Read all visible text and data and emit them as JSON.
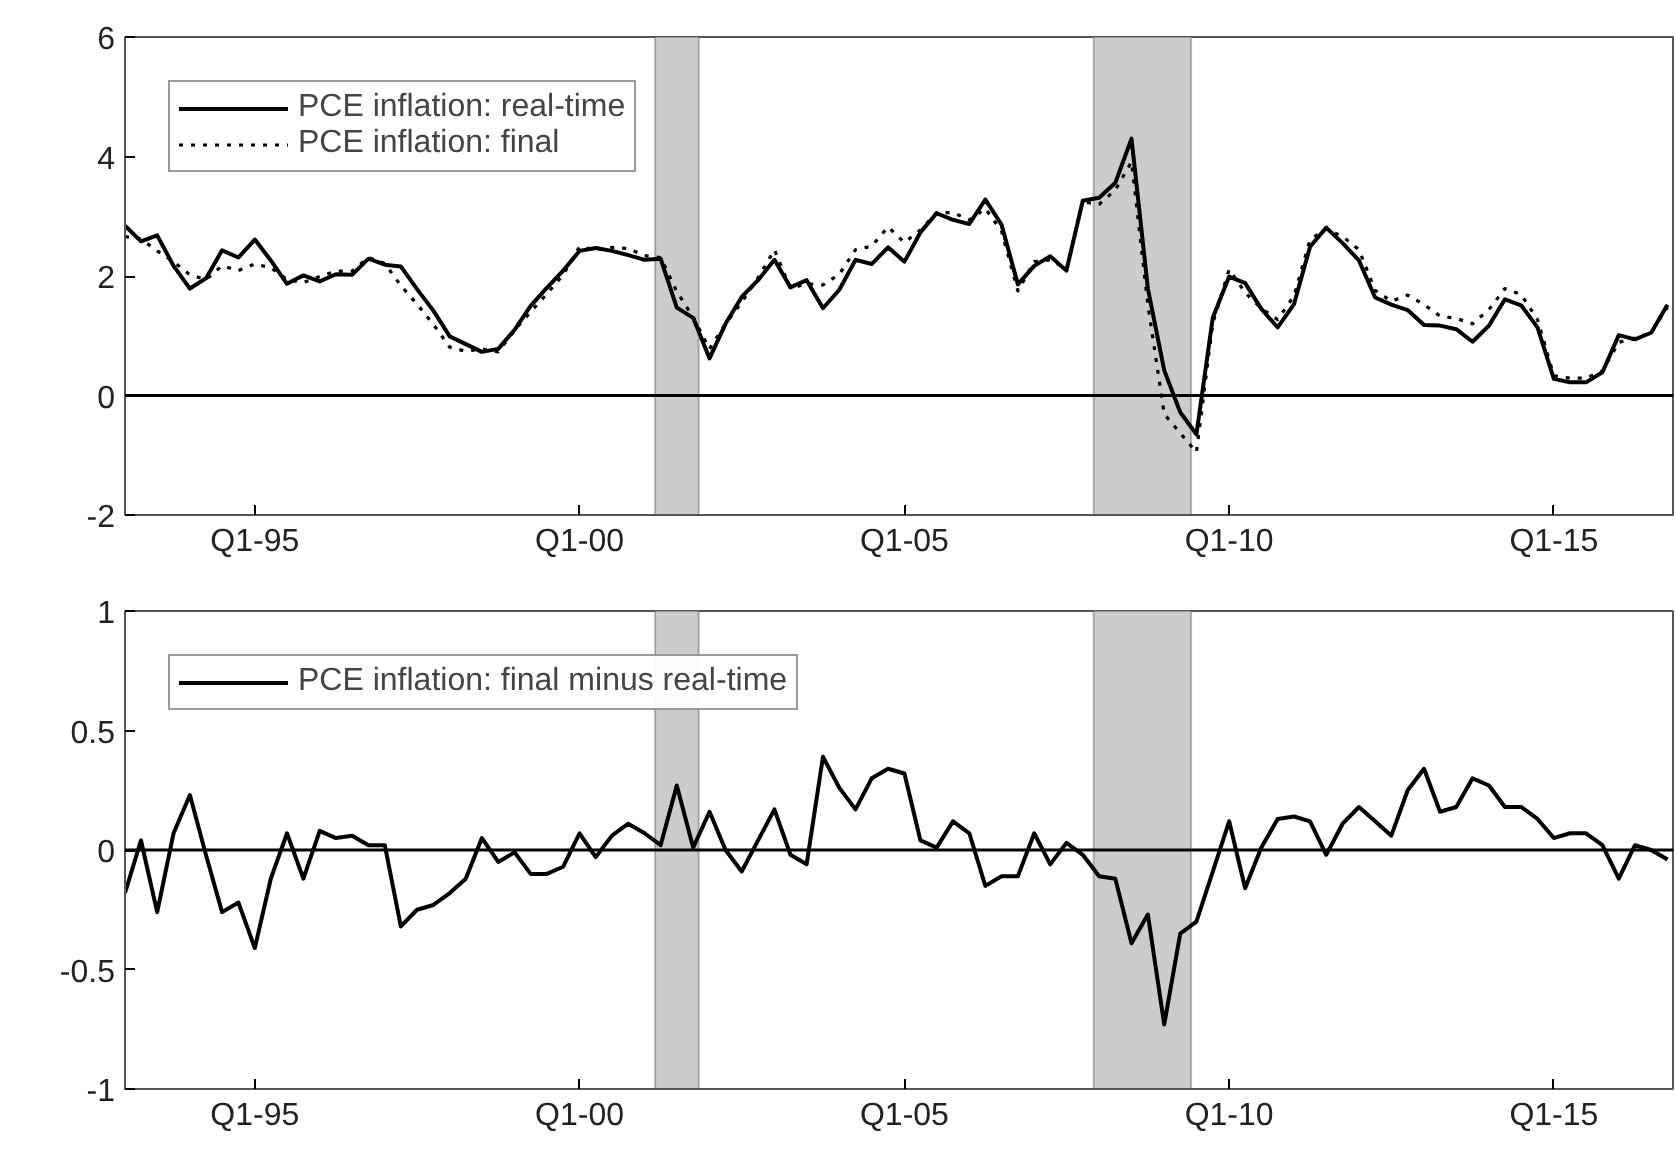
{
  "chart_data": [
    {
      "type": "line",
      "x": [
        "1993-01",
        "1993-04",
        "1993-07",
        "1993-10",
        "1994-01",
        "1994-04",
        "1994-07",
        "1994-10",
        "1995-01",
        "1995-04",
        "1995-07",
        "1995-10",
        "1996-01",
        "1996-04",
        "1996-07",
        "1996-10",
        "1997-01",
        "1997-04",
        "1997-07",
        "1997-10",
        "1998-01",
        "1998-04",
        "1998-07",
        "1998-10",
        "1999-01",
        "1999-04",
        "1999-07",
        "1999-10",
        "2000-01",
        "2000-04",
        "2000-07",
        "2000-10",
        "2001-01",
        "2001-04",
        "2001-07",
        "2001-10",
        "2002-01",
        "2002-04",
        "2002-07",
        "2002-10",
        "2003-01",
        "2003-04",
        "2003-07",
        "2003-10",
        "2004-01",
        "2004-04",
        "2004-07",
        "2004-10",
        "2005-01",
        "2005-04",
        "2005-07",
        "2005-10",
        "2006-01",
        "2006-04",
        "2006-07",
        "2006-10",
        "2007-01",
        "2007-04",
        "2007-07",
        "2007-10",
        "2008-01",
        "2008-04",
        "2008-07",
        "2008-10",
        "2009-01",
        "2009-04",
        "2009-07",
        "2009-10",
        "2010-01",
        "2010-04",
        "2010-07",
        "2010-10",
        "2011-01",
        "2011-04",
        "2011-07",
        "2011-10",
        "2012-01",
        "2012-04",
        "2012-07",
        "2012-10",
        "2013-01",
        "2013-04",
        "2013-07",
        "2013-10",
        "2014-01",
        "2014-04",
        "2014-07",
        "2014-10",
        "2015-01",
        "2015-04",
        "2015-07",
        "2015-10",
        "2016-01",
        "2016-04",
        "2016-07",
        "2016-10"
      ],
      "series": [
        {
          "name": "PCE inflation: real-time",
          "color": "#000000",
          "line_style": "solid",
          "values": [
            2.84,
            2.58,
            2.68,
            2.17,
            1.79,
            1.96,
            2.43,
            2.31,
            2.61,
            2.26,
            1.87,
            2.01,
            1.91,
            2.03,
            2.02,
            2.29,
            2.19,
            2.16,
            1.78,
            1.42,
            0.99,
            0.86,
            0.73,
            0.78,
            1.1,
            1.5,
            1.8,
            2.09,
            2.42,
            2.47,
            2.42,
            2.35,
            2.27,
            2.29,
            1.47,
            1.3,
            0.62,
            1.2,
            1.65,
            1.93,
            2.27,
            1.81,
            1.93,
            1.46,
            1.77,
            2.27,
            2.2,
            2.48,
            2.24,
            2.73,
            3.05,
            2.94,
            2.87,
            3.28,
            2.86,
            1.86,
            2.17,
            2.33,
            2.09,
            3.26,
            3.31,
            3.56,
            4.3,
            1.79,
            0.42,
            -0.28,
            -0.65,
            1.3,
            1.99,
            1.88,
            1.45,
            1.14,
            1.53,
            2.49,
            2.81,
            2.55,
            2.26,
            1.64,
            1.52,
            1.43,
            1.18,
            1.17,
            1.11,
            0.9,
            1.17,
            1.61,
            1.51,
            1.14,
            0.28,
            0.22,
            0.22,
            0.39,
            1.01,
            0.94,
            1.05,
            1.52
          ]
        },
        {
          "name": "PCE inflation: final",
          "color": "#000000",
          "line_style": "dotted",
          "values": [
            2.66,
            2.62,
            2.42,
            2.24,
            2.02,
            1.94,
            2.17,
            2.09,
            2.2,
            2.14,
            1.94,
            1.89,
            1.99,
            2.08,
            2.08,
            2.31,
            2.21,
            1.84,
            1.53,
            1.19,
            0.81,
            0.74,
            0.78,
            0.73,
            1.09,
            1.4,
            1.7,
            2.02,
            2.49,
            2.44,
            2.48,
            2.46,
            2.34,
            2.31,
            1.74,
            1.31,
            0.78,
            1.2,
            1.56,
            1.97,
            2.44,
            1.79,
            1.87,
            1.85,
            2.03,
            2.44,
            2.5,
            2.82,
            2.56,
            2.77,
            3.06,
            3.06,
            2.94,
            3.13,
            2.75,
            1.75,
            2.24,
            2.27,
            2.12,
            3.24,
            3.2,
            3.44,
            3.91,
            1.52,
            -0.31,
            -0.63,
            -0.95,
            1.21,
            2.11,
            1.72,
            1.46,
            1.27,
            1.67,
            2.61,
            2.79,
            2.66,
            2.44,
            1.76,
            1.58,
            1.68,
            1.52,
            1.33,
            1.29,
            1.2,
            1.44,
            1.79,
            1.69,
            1.27,
            0.33,
            0.29,
            0.29,
            0.41,
            0.89,
            0.96,
            1.05,
            1.48
          ]
        }
      ],
      "xlim": [
        "1993-01",
        "2016-11"
      ],
      "ylim": [
        -2,
        6
      ],
      "xticks": [
        {
          "value": "1995-01",
          "label": "Q1-95"
        },
        {
          "value": "2000-01",
          "label": "Q1-00"
        },
        {
          "value": "2005-01",
          "label": "Q1-05"
        },
        {
          "value": "2010-01",
          "label": "Q1-10"
        },
        {
          "value": "2015-01",
          "label": "Q1-15"
        }
      ],
      "yticks": [
        -2,
        0,
        2,
        4,
        6
      ],
      "ref_lines": [
        {
          "axis": "y",
          "value": 0,
          "color": "#000000"
        }
      ],
      "bands": [
        {
          "axis": "x",
          "from": "2001-03",
          "to": "2001-11",
          "color": "#cccccc"
        },
        {
          "axis": "x",
          "from": "2007-12",
          "to": "2009-06",
          "color": "#cccccc"
        }
      ],
      "legend": "top left",
      "grid": false
    },
    {
      "type": "line",
      "x": [
        "1993-01",
        "1993-04",
        "1993-07",
        "1993-10",
        "1994-01",
        "1994-04",
        "1994-07",
        "1994-10",
        "1995-01",
        "1995-04",
        "1995-07",
        "1995-10",
        "1996-01",
        "1996-04",
        "1996-07",
        "1996-10",
        "1997-01",
        "1997-04",
        "1997-07",
        "1997-10",
        "1998-01",
        "1998-04",
        "1998-07",
        "1998-10",
        "1999-01",
        "1999-04",
        "1999-07",
        "1999-10",
        "2000-01",
        "2000-04",
        "2000-07",
        "2000-10",
        "2001-01",
        "2001-04",
        "2001-07",
        "2001-10",
        "2002-01",
        "2002-04",
        "2002-07",
        "2002-10",
        "2003-01",
        "2003-04",
        "2003-07",
        "2003-10",
        "2004-01",
        "2004-04",
        "2004-07",
        "2004-10",
        "2005-01",
        "2005-04",
        "2005-07",
        "2005-10",
        "2006-01",
        "2006-04",
        "2006-07",
        "2006-10",
        "2007-01",
        "2007-04",
        "2007-07",
        "2007-10",
        "2008-01",
        "2008-04",
        "2008-07",
        "2008-10",
        "2009-01",
        "2009-04",
        "2009-07",
        "2009-10",
        "2010-01",
        "2010-04",
        "2010-07",
        "2010-10",
        "2011-01",
        "2011-04",
        "2011-07",
        "2011-10",
        "2012-01",
        "2012-04",
        "2012-07",
        "2012-10",
        "2013-01",
        "2013-04",
        "2013-07",
        "2013-10",
        "2014-01",
        "2014-04",
        "2014-07",
        "2014-10",
        "2015-01",
        "2015-04",
        "2015-07",
        "2015-10",
        "2016-01",
        "2016-04",
        "2016-07",
        "2016-10"
      ],
      "series": [
        {
          "name": "PCE inflation: final minus real-time",
          "color": "#000000",
          "line_style": "solid",
          "values": [
            -0.18,
            0.04,
            -0.26,
            0.07,
            0.23,
            -0.02,
            -0.26,
            -0.22,
            -0.41,
            -0.12,
            0.07,
            -0.12,
            0.08,
            0.05,
            0.06,
            0.02,
            0.02,
            -0.32,
            -0.25,
            -0.23,
            -0.18,
            -0.12,
            0.05,
            -0.05,
            -0.01,
            -0.1,
            -0.1,
            -0.07,
            0.07,
            -0.03,
            0.06,
            0.11,
            0.07,
            0.02,
            0.27,
            0.01,
            0.16,
            0.0,
            -0.09,
            0.04,
            0.17,
            -0.02,
            -0.06,
            0.39,
            0.26,
            0.17,
            0.3,
            0.34,
            0.32,
            0.04,
            0.01,
            0.12,
            0.07,
            -0.15,
            -0.11,
            -0.11,
            0.07,
            -0.06,
            0.03,
            -0.02,
            -0.11,
            -0.12,
            -0.39,
            -0.27,
            -0.73,
            -0.35,
            -0.3,
            -0.09,
            0.12,
            -0.16,
            0.01,
            0.13,
            0.14,
            0.12,
            -0.02,
            0.11,
            0.18,
            0.12,
            0.06,
            0.25,
            0.34,
            0.16,
            0.18,
            0.3,
            0.27,
            0.18,
            0.18,
            0.13,
            0.05,
            0.07,
            0.07,
            0.02,
            -0.12,
            0.02,
            0.0,
            -0.04
          ]
        }
      ],
      "xlim": [
        "1993-01",
        "2016-11"
      ],
      "ylim": [
        -1,
        1
      ],
      "xticks": [
        {
          "value": "1995-01",
          "label": "Q1-95"
        },
        {
          "value": "2000-01",
          "label": "Q1-00"
        },
        {
          "value": "2005-01",
          "label": "Q1-05"
        },
        {
          "value": "2010-01",
          "label": "Q1-10"
        },
        {
          "value": "2015-01",
          "label": "Q1-15"
        }
      ],
      "yticks": [
        -1,
        -0.5,
        0,
        0.5,
        1
      ],
      "ref_lines": [
        {
          "axis": "y",
          "value": 0,
          "color": "#000000"
        }
      ],
      "bands": [
        {
          "axis": "x",
          "from": "2001-03",
          "to": "2001-11",
          "color": "#cccccc"
        },
        {
          "axis": "x",
          "from": "2007-12",
          "to": "2009-06",
          "color": "#cccccc"
        }
      ],
      "legend": "top left",
      "grid": false
    }
  ]
}
